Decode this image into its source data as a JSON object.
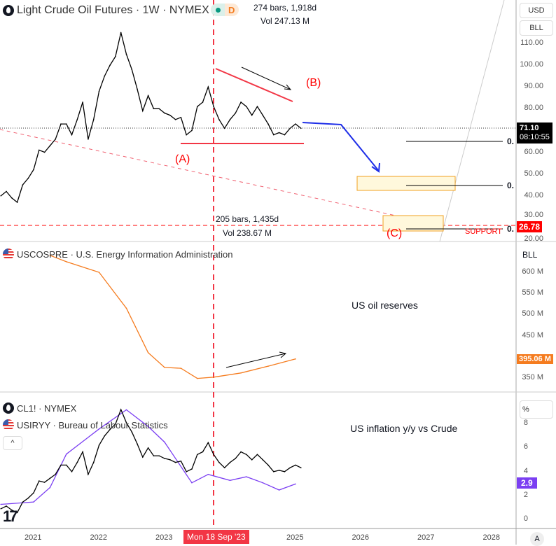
{
  "header": {
    "symbol_title": "Light Crude Oil Futures · 1W · NYMEX",
    "market_status": "D",
    "bars_info": "274 bars, 1,918d",
    "vol_info": "Vol 247.13 M"
  },
  "price_axis": {
    "currency": "USD",
    "unit": "BLL",
    "ticks": [
      "110.00",
      "100.00",
      "90.00",
      "80.00",
      "70.00",
      "60.00",
      "50.00",
      "40.00",
      "30.00",
      "20.00"
    ],
    "last_price": "71.10",
    "countdown": "08:10:55",
    "support_price": "26.78",
    "colors": {
      "last": "#000000",
      "support": "#ff0000"
    }
  },
  "annotations": {
    "a": "(A)",
    "b": "(B)",
    "c": "(C)",
    "support": "SUPPORT",
    "fib1": "0.",
    "fib2": "0.",
    "fib3": "0.",
    "range_bars": "205 bars, 1,435d",
    "range_vol": "Vol 238.67 M",
    "reserves_note": "US oil reserves",
    "inflation_note": "US inflation y/y vs Crude"
  },
  "reserves_pane": {
    "legend": "USCOSPRE · U.S. Energy Information Administration",
    "unit": "BLL",
    "ticks": [
      "600 M",
      "550 M",
      "500 M",
      "450 M",
      "350 M"
    ],
    "last": "395.06 M",
    "color": "#f57c1f"
  },
  "inflation_pane": {
    "legend1": "CL1! · NYMEX",
    "legend2": "USIRYY · Bureau of Labour Statistics",
    "unit": "%",
    "ticks": [
      "8",
      "6",
      "4",
      "2",
      "0"
    ],
    "last": "2.9",
    "color": "#7b3ff2",
    "collapse": "^"
  },
  "time_axis": {
    "ticks": [
      "2021",
      "2022",
      "2023",
      "2025",
      "2026",
      "2027",
      "2028"
    ],
    "crosshair_date": "Mon 18 Sep '23",
    "auto": "A"
  },
  "chart_data": [
    {
      "type": "line",
      "title": "Light Crude Oil Futures · 1W · NYMEX",
      "ylabel": "USD",
      "ylim": [
        20,
        115
      ],
      "x": [
        "2020-07",
        "2020-08",
        "2020-09",
        "2020-10",
        "2020-11",
        "2020-12",
        "2021-01",
        "2021-02",
        "2021-03",
        "2021-04",
        "2021-05",
        "2021-06",
        "2021-07",
        "2021-08",
        "2021-09",
        "2021-10",
        "2021-11",
        "2021-12",
        "2022-01",
        "2022-02",
        "2022-03",
        "2022-04",
        "2022-05",
        "2022-06",
        "2022-07",
        "2022-08",
        "2022-09",
        "2022-10",
        "2022-11",
        "2022-12",
        "2023-01",
        "2023-02",
        "2023-03",
        "2023-04",
        "2023-05",
        "2023-06",
        "2023-07",
        "2023-08",
        "2023-09",
        "2023-10",
        "2023-11",
        "2023-12",
        "2024-01",
        "2024-02",
        "2024-03",
        "2024-04",
        "2024-05",
        "2024-06",
        "2024-07",
        "2024-08",
        "2024-09",
        "2024-10",
        "2024-11",
        "2024-12",
        "2025-01",
        "2025-02"
      ],
      "values": [
        40,
        42,
        39,
        37,
        45,
        48,
        52,
        61,
        60,
        63,
        66,
        73,
        73,
        68,
        75,
        83,
        66,
        75,
        88,
        95,
        100,
        104,
        115,
        105,
        98,
        89,
        79,
        86,
        80,
        80,
        78,
        77,
        75,
        76,
        68,
        70,
        81,
        83,
        90,
        81,
        75,
        71,
        75,
        78,
        83,
        81,
        77,
        81,
        77,
        73,
        68,
        69,
        68,
        71,
        73,
        71
      ]
    },
    {
      "type": "line",
      "title": "USCOSPRE · U.S. Energy Information Administration",
      "ylabel": "BLL",
      "x": [
        "2021-04",
        "2021-07",
        "2022-01",
        "2022-06",
        "2022-10",
        "2023-01",
        "2023-04",
        "2023-07",
        "2023-10",
        "2024-03",
        "2024-08",
        "2025-01"
      ],
      "values": [
        640,
        625,
        600,
        515,
        410,
        375,
        373,
        349,
        352,
        362,
        378,
        395
      ]
    },
    {
      "type": "line",
      "title": "USIRYY · Bureau of Labour Statistics",
      "ylabel": "%",
      "x": [
        "2020-07",
        "2021-01",
        "2021-04",
        "2021-07",
        "2022-01",
        "2022-06",
        "2022-10",
        "2023-01",
        "2023-06",
        "2023-09",
        "2024-01",
        "2024-04",
        "2024-07",
        "2024-10",
        "2025-01"
      ],
      "values": [
        1.2,
        1.4,
        2.6,
        5.4,
        7.5,
        9.1,
        7.7,
        6.4,
        3.0,
        3.7,
        3.2,
        3.5,
        3.0,
        2.4,
        2.9
      ]
    }
  ]
}
